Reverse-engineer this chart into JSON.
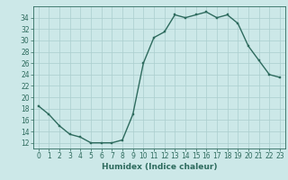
{
  "x": [
    0,
    1,
    2,
    3,
    4,
    5,
    6,
    7,
    8,
    9,
    10,
    11,
    12,
    13,
    14,
    15,
    16,
    17,
    18,
    19,
    20,
    21,
    22,
    23
  ],
  "y": [
    18.5,
    17,
    15,
    13.5,
    13,
    12,
    12,
    12,
    12.5,
    17,
    26,
    30.5,
    31.5,
    34.5,
    34,
    34.5,
    35,
    34,
    34.5,
    33,
    29,
    26.5,
    24,
    23.5
  ],
  "line_color": "#2e6b5e",
  "marker_color": "#2e6b5e",
  "bg_color": "#cce8e8",
  "grid_color": "#aacece",
  "xlabel": "Humidex (Indice chaleur)",
  "xlim": [
    -0.5,
    23.5
  ],
  "ylim": [
    11,
    36
  ],
  "yticks": [
    12,
    14,
    16,
    18,
    20,
    22,
    24,
    26,
    28,
    30,
    32,
    34
  ],
  "xticks": [
    0,
    1,
    2,
    3,
    4,
    5,
    6,
    7,
    8,
    9,
    10,
    11,
    12,
    13,
    14,
    15,
    16,
    17,
    18,
    19,
    20,
    21,
    22,
    23
  ],
  "tick_label_fontsize": 5.5,
  "xlabel_fontsize": 6.5,
  "marker_size": 2.0,
  "line_width": 1.0
}
